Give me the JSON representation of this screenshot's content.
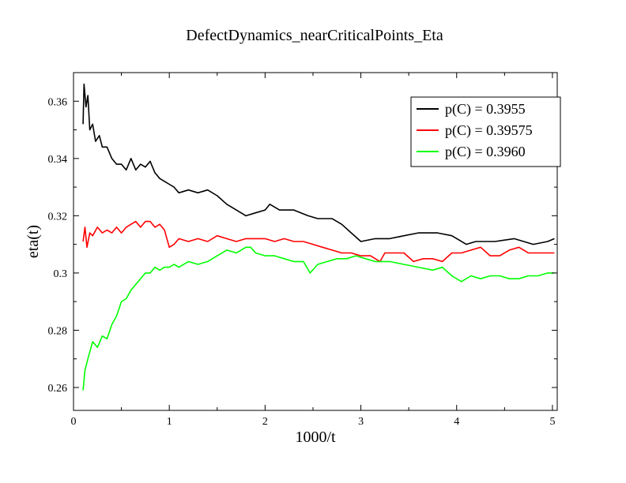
{
  "chart_data": {
    "type": "line",
    "title": "DefectDynamics_nearCriticalPoints_Eta",
    "xlabel": "1000/t",
    "ylabel": "eta(t)",
    "xlim": [
      0,
      5.05
    ],
    "ylim": [
      0.252,
      0.37
    ],
    "xticks": [
      0,
      1,
      2,
      3,
      4,
      5
    ],
    "xtick_labels": [
      "0",
      "1",
      "2",
      "3",
      "4",
      "5"
    ],
    "yticks": [
      0.26,
      0.28,
      0.3,
      0.32,
      0.34,
      0.36
    ],
    "ytick_labels": [
      "0.26",
      "0.28",
      "0.3",
      "0.32",
      "0.34",
      "0.36"
    ],
    "grid": false,
    "legend_position": "top-right",
    "series": [
      {
        "name": "p(C) = 0.3955",
        "color": "#000000",
        "points": [
          [
            0.1,
            0.352
          ],
          [
            0.11,
            0.366
          ],
          [
            0.13,
            0.358
          ],
          [
            0.15,
            0.362
          ],
          [
            0.17,
            0.35
          ],
          [
            0.2,
            0.352
          ],
          [
            0.23,
            0.346
          ],
          [
            0.27,
            0.348
          ],
          [
            0.3,
            0.344
          ],
          [
            0.35,
            0.344
          ],
          [
            0.4,
            0.34
          ],
          [
            0.45,
            0.338
          ],
          [
            0.5,
            0.338
          ],
          [
            0.55,
            0.336
          ],
          [
            0.6,
            0.34
          ],
          [
            0.65,
            0.336
          ],
          [
            0.7,
            0.338
          ],
          [
            0.75,
            0.337
          ],
          [
            0.8,
            0.339
          ],
          [
            0.85,
            0.335
          ],
          [
            0.9,
            0.333
          ],
          [
            0.95,
            0.332
          ],
          [
            1.0,
            0.331
          ],
          [
            1.05,
            0.33
          ],
          [
            1.1,
            0.328
          ],
          [
            1.2,
            0.329
          ],
          [
            1.3,
            0.328
          ],
          [
            1.4,
            0.329
          ],
          [
            1.5,
            0.327
          ],
          [
            1.6,
            0.324
          ],
          [
            1.7,
            0.322
          ],
          [
            1.8,
            0.32
          ],
          [
            1.9,
            0.321
          ],
          [
            2.0,
            0.322
          ],
          [
            2.05,
            0.324
          ],
          [
            2.15,
            0.322
          ],
          [
            2.3,
            0.322
          ],
          [
            2.45,
            0.32
          ],
          [
            2.55,
            0.319
          ],
          [
            2.7,
            0.319
          ],
          [
            2.8,
            0.317
          ],
          [
            2.9,
            0.314
          ],
          [
            3.0,
            0.311
          ],
          [
            3.15,
            0.312
          ],
          [
            3.3,
            0.312
          ],
          [
            3.45,
            0.313
          ],
          [
            3.6,
            0.314
          ],
          [
            3.8,
            0.314
          ],
          [
            3.95,
            0.313
          ],
          [
            4.1,
            0.31
          ],
          [
            4.2,
            0.311
          ],
          [
            4.4,
            0.311
          ],
          [
            4.6,
            0.312
          ],
          [
            4.8,
            0.31
          ],
          [
            4.95,
            0.311
          ],
          [
            5.02,
            0.312
          ]
        ]
      },
      {
        "name": "p(C) = 0.39575",
        "color": "#ff0000",
        "points": [
          [
            0.1,
            0.311
          ],
          [
            0.12,
            0.316
          ],
          [
            0.14,
            0.309
          ],
          [
            0.17,
            0.314
          ],
          [
            0.2,
            0.313
          ],
          [
            0.25,
            0.316
          ],
          [
            0.3,
            0.314
          ],
          [
            0.35,
            0.315
          ],
          [
            0.4,
            0.314
          ],
          [
            0.45,
            0.316
          ],
          [
            0.5,
            0.314
          ],
          [
            0.55,
            0.316
          ],
          [
            0.6,
            0.317
          ],
          [
            0.65,
            0.318
          ],
          [
            0.7,
            0.316
          ],
          [
            0.75,
            0.318
          ],
          [
            0.8,
            0.318
          ],
          [
            0.85,
            0.316
          ],
          [
            0.9,
            0.317
          ],
          [
            0.95,
            0.315
          ],
          [
            1.0,
            0.309
          ],
          [
            1.05,
            0.31
          ],
          [
            1.1,
            0.312
          ],
          [
            1.2,
            0.311
          ],
          [
            1.3,
            0.312
          ],
          [
            1.4,
            0.311
          ],
          [
            1.5,
            0.313
          ],
          [
            1.6,
            0.312
          ],
          [
            1.7,
            0.311
          ],
          [
            1.8,
            0.312
          ],
          [
            1.9,
            0.312
          ],
          [
            2.0,
            0.312
          ],
          [
            2.1,
            0.311
          ],
          [
            2.2,
            0.312
          ],
          [
            2.3,
            0.311
          ],
          [
            2.4,
            0.311
          ],
          [
            2.5,
            0.31
          ],
          [
            2.6,
            0.309
          ],
          [
            2.7,
            0.308
          ],
          [
            2.8,
            0.307
          ],
          [
            2.9,
            0.307
          ],
          [
            3.0,
            0.306
          ],
          [
            3.1,
            0.306
          ],
          [
            3.2,
            0.304
          ],
          [
            3.25,
            0.307
          ],
          [
            3.35,
            0.307
          ],
          [
            3.45,
            0.307
          ],
          [
            3.55,
            0.304
          ],
          [
            3.65,
            0.305
          ],
          [
            3.75,
            0.305
          ],
          [
            3.85,
            0.304
          ],
          [
            3.95,
            0.307
          ],
          [
            4.05,
            0.307
          ],
          [
            4.15,
            0.308
          ],
          [
            4.25,
            0.309
          ],
          [
            4.35,
            0.306
          ],
          [
            4.45,
            0.306
          ],
          [
            4.55,
            0.308
          ],
          [
            4.65,
            0.309
          ],
          [
            4.75,
            0.307
          ],
          [
            4.85,
            0.307
          ],
          [
            4.95,
            0.307
          ],
          [
            5.02,
            0.307
          ]
        ]
      },
      {
        "name": "p(C) = 0.3960",
        "color": "#00ff00",
        "points": [
          [
            0.1,
            0.259
          ],
          [
            0.12,
            0.266
          ],
          [
            0.15,
            0.27
          ],
          [
            0.2,
            0.276
          ],
          [
            0.25,
            0.274
          ],
          [
            0.3,
            0.278
          ],
          [
            0.35,
            0.277
          ],
          [
            0.4,
            0.282
          ],
          [
            0.45,
            0.285
          ],
          [
            0.5,
            0.29
          ],
          [
            0.55,
            0.291
          ],
          [
            0.6,
            0.294
          ],
          [
            0.65,
            0.296
          ],
          [
            0.7,
            0.298
          ],
          [
            0.75,
            0.3
          ],
          [
            0.8,
            0.3
          ],
          [
            0.85,
            0.302
          ],
          [
            0.9,
            0.301
          ],
          [
            0.95,
            0.302
          ],
          [
            1.0,
            0.302
          ],
          [
            1.05,
            0.303
          ],
          [
            1.1,
            0.302
          ],
          [
            1.2,
            0.304
          ],
          [
            1.3,
            0.303
          ],
          [
            1.4,
            0.304
          ],
          [
            1.5,
            0.306
          ],
          [
            1.6,
            0.308
          ],
          [
            1.7,
            0.307
          ],
          [
            1.8,
            0.309
          ],
          [
            1.85,
            0.309
          ],
          [
            1.9,
            0.307
          ],
          [
            2.0,
            0.306
          ],
          [
            2.1,
            0.306
          ],
          [
            2.2,
            0.305
          ],
          [
            2.3,
            0.304
          ],
          [
            2.4,
            0.304
          ],
          [
            2.47,
            0.3
          ],
          [
            2.55,
            0.303
          ],
          [
            2.65,
            0.304
          ],
          [
            2.75,
            0.305
          ],
          [
            2.85,
            0.305
          ],
          [
            2.95,
            0.306
          ],
          [
            3.05,
            0.305
          ],
          [
            3.15,
            0.304
          ],
          [
            3.3,
            0.304
          ],
          [
            3.45,
            0.303
          ],
          [
            3.6,
            0.302
          ],
          [
            3.75,
            0.301
          ],
          [
            3.85,
            0.302
          ],
          [
            3.95,
            0.299
          ],
          [
            4.05,
            0.297
          ],
          [
            4.15,
            0.299
          ],
          [
            4.25,
            0.298
          ],
          [
            4.35,
            0.299
          ],
          [
            4.45,
            0.299
          ],
          [
            4.55,
            0.298
          ],
          [
            4.65,
            0.298
          ],
          [
            4.75,
            0.299
          ],
          [
            4.85,
            0.299
          ],
          [
            4.95,
            0.3
          ],
          [
            5.02,
            0.3
          ]
        ]
      }
    ]
  }
}
